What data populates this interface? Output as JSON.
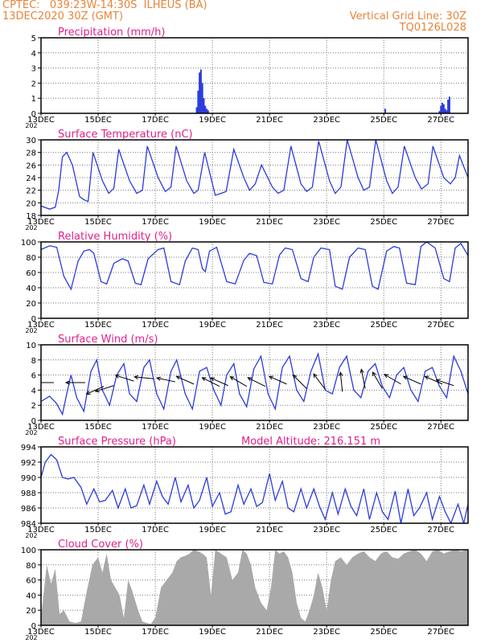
{
  "header": {
    "line1": "CPTEC:   039:23W-14:30S  ILHEUS (BA)",
    "line2": "13DEC2020 30Z (GMT)",
    "right1": "Vertical Grid Line: 30Z",
    "right2": "TQ0126L028"
  },
  "colors": {
    "title": "#e8843a",
    "panel_label": "#e0208a",
    "line": "#2b3bdc",
    "cloud": "#a9a9a9",
    "grid": "#7a7a7a"
  },
  "x_ticks": [
    "13DEC",
    "15DEC",
    "17DEC",
    "19DEC",
    "21DEC",
    "23DEC",
    "25DEC",
    "27DEC"
  ],
  "x_tick_days": [
    0,
    2,
    4,
    6,
    8,
    10,
    12,
    14
  ],
  "x_corner_fragment": "202",
  "chart_data": [
    {
      "type": "bar",
      "title": "Precipitation (mm/h)",
      "ylim": [
        0,
        5
      ],
      "yticks": [
        "0",
        "1",
        "2",
        "3",
        "4",
        "5"
      ],
      "x_unit": "days since 13DEC 06Z",
      "x": [
        2.2,
        5.45,
        5.5,
        5.55,
        5.6,
        5.65,
        5.7,
        5.75,
        5.8,
        5.85,
        12.05,
        13.95,
        14.0,
        14.05,
        14.1,
        14.15,
        14.2,
        14.25,
        14.3
      ],
      "values": [
        0.05,
        0.4,
        1.5,
        2.7,
        2.9,
        2.0,
        1.0,
        0.5,
        0.3,
        0.2,
        0.3,
        0.15,
        0.5,
        0.7,
        0.6,
        0.3,
        0.2,
        0.9,
        1.1
      ]
    },
    {
      "type": "line",
      "title": "Surface Temperature (nC)",
      "ylim": [
        18,
        30
      ],
      "yticks": [
        "18",
        "20",
        "22",
        "24",
        "26",
        "28",
        "30"
      ],
      "x": [
        0,
        0.3,
        0.5,
        0.62,
        0.75,
        0.9,
        1.1,
        1.35,
        1.5,
        1.65,
        1.82,
        2.15,
        2.37,
        2.55,
        2.72,
        3.1,
        3.35,
        3.55,
        3.72,
        4.1,
        4.35,
        4.55,
        4.73,
        5.1,
        5.35,
        5.5,
        5.73,
        6.1,
        6.3,
        6.48,
        6.75,
        7.1,
        7.3,
        7.5,
        7.72,
        8.1,
        8.3,
        8.5,
        8.75,
        9.1,
        9.3,
        9.5,
        9.72,
        10.1,
        10.3,
        10.5,
        10.72,
        11.1,
        11.3,
        11.5,
        11.72,
        12.1,
        12.3,
        12.5,
        12.72,
        13.1,
        13.32,
        13.55,
        13.72,
        14.1,
        14.33,
        14.5,
        14.65,
        14.95
      ],
      "values": [
        19.5,
        19.0,
        19.3,
        22.0,
        27.3,
        28.0,
        26.0,
        21.0,
        20.5,
        20.2,
        28.0,
        23.5,
        21.5,
        22.3,
        28.5,
        23.5,
        21.5,
        22.0,
        29.0,
        24.0,
        21.8,
        22.5,
        29.0,
        23.5,
        21.5,
        22.0,
        28.0,
        21.2,
        21.5,
        21.8,
        28.5,
        24.0,
        22.0,
        23.0,
        26.0,
        22.5,
        21.5,
        22.0,
        29.0,
        23.0,
        21.8,
        22.5,
        29.8,
        23.5,
        21.5,
        22.5,
        30.0,
        24.0,
        22.0,
        22.5,
        30.0,
        23.5,
        21.5,
        22.5,
        29.0,
        24.0,
        22.2,
        23.0,
        29.0,
        24.0,
        23.0,
        24.0,
        27.5,
        24.0
      ]
    },
    {
      "type": "line",
      "title": "Relative Humidity (%)",
      "ylim": [
        0,
        100
      ],
      "yticks": [
        "0",
        "20",
        "40",
        "60",
        "80",
        "100"
      ],
      "x": [
        0,
        0.3,
        0.55,
        0.8,
        1.05,
        1.3,
        1.5,
        1.7,
        1.85,
        2.1,
        2.3,
        2.55,
        2.85,
        3.05,
        3.3,
        3.5,
        3.75,
        4.1,
        4.3,
        4.55,
        4.85,
        5.05,
        5.3,
        5.5,
        5.65,
        5.75,
        5.9,
        6.15,
        6.5,
        6.8,
        7.1,
        7.3,
        7.55,
        7.8,
        8.1,
        8.35,
        8.55,
        8.8,
        9.1,
        9.35,
        9.55,
        9.8,
        10.1,
        10.3,
        10.55,
        10.8,
        11.1,
        11.35,
        11.6,
        11.8,
        12.1,
        12.35,
        12.55,
        12.8,
        13.1,
        13.3,
        13.5,
        13.8,
        14.1,
        14.3,
        14.5,
        14.7,
        14.95
      ],
      "values": [
        90,
        95,
        93,
        55,
        38,
        75,
        88,
        90,
        85,
        48,
        45,
        72,
        78,
        75,
        46,
        44,
        78,
        90,
        92,
        48,
        44,
        75,
        92,
        90,
        65,
        61,
        88,
        93,
        48,
        45,
        76,
        85,
        82,
        47,
        45,
        83,
        92,
        90,
        52,
        48,
        80,
        92,
        90,
        42,
        38,
        80,
        92,
        90,
        42,
        38,
        88,
        94,
        92,
        46,
        44,
        94,
        100,
        92,
        52,
        48,
        92,
        98,
        82
      ]
    },
    {
      "type": "line",
      "title": "Surface Wind (m/s)",
      "ylim": [
        0,
        10
      ],
      "yticks": [
        "0",
        "2",
        "4",
        "6",
        "8",
        "10"
      ],
      "x": [
        0,
        0.3,
        0.55,
        0.75,
        0.9,
        1.05,
        1.25,
        1.5,
        1.75,
        1.95,
        2.15,
        2.4,
        2.65,
        2.9,
        3.1,
        3.35,
        3.6,
        3.8,
        4.05,
        4.3,
        4.55,
        4.75,
        5.05,
        5.3,
        5.55,
        5.8,
        6.05,
        6.3,
        6.5,
        6.75,
        6.95,
        7.2,
        7.45,
        7.7,
        7.95,
        8.2,
        8.45,
        8.7,
        8.95,
        9.2,
        9.45,
        9.7,
        9.95,
        10.2,
        10.45,
        10.7,
        10.95,
        11.2,
        11.45,
        11.7,
        11.95,
        12.2,
        12.45,
        12.7,
        12.95,
        13.2,
        13.45,
        13.7,
        13.95,
        14.2,
        14.45,
        14.7,
        14.95
      ],
      "values": [
        2.5,
        3.2,
        2.2,
        0.8,
        3.5,
        6.0,
        3.0,
        1.2,
        6.5,
        8.0,
        4.0,
        2.0,
        6.0,
        7.5,
        3.5,
        2.5,
        7.0,
        8.0,
        3.5,
        1.5,
        6.5,
        8.0,
        3.5,
        1.5,
        6.5,
        7.0,
        4.0,
        2.0,
        6.0,
        7.5,
        3.5,
        1.8,
        6.8,
        8.5,
        3.5,
        1.5,
        7.0,
        8.5,
        4.0,
        2.5,
        6.5,
        8.8,
        4.0,
        3.5,
        7.0,
        8.5,
        4.0,
        3.0,
        6.5,
        7.5,
        4.5,
        3.0,
        6.0,
        7.0,
        4.0,
        2.5,
        6.5,
        7.0,
        4.5,
        3.0,
        8.5,
        6.5,
        3.5
      ],
      "barbs": [
        {
          "x": 0.1,
          "y": 5.0,
          "u": -1,
          "v": 0.0
        },
        {
          "x": 0.45,
          "y": 5.0,
          "u": -1,
          "v": 0.0
        },
        {
          "x": 1.55,
          "y": 5.0,
          "u": -1,
          "v": 0.0
        },
        {
          "x": 2.2,
          "y": 4.5,
          "u": -0.9,
          "v": -0.4
        },
        {
          "x": 2.55,
          "y": 4.6,
          "u": -0.95,
          "v": -0.3
        },
        {
          "x": 3.25,
          "y": 5.2,
          "u": -0.95,
          "v": 0.3
        },
        {
          "x": 3.95,
          "y": 5.5,
          "u": -1,
          "v": 0.1
        },
        {
          "x": 4.7,
          "y": 5.1,
          "u": -0.95,
          "v": 0.2
        },
        {
          "x": 5.35,
          "y": 4.8,
          "u": -0.9,
          "v": 0.4
        },
        {
          "x": 6.25,
          "y": 4.5,
          "u": -0.9,
          "v": 0.45
        },
        {
          "x": 6.55,
          "y": 4.6,
          "u": -0.9,
          "v": 0.4
        },
        {
          "x": 7.2,
          "y": 4.5,
          "u": -0.85,
          "v": 0.5
        },
        {
          "x": 7.85,
          "y": 4.5,
          "u": -0.9,
          "v": 0.45
        },
        {
          "x": 8.6,
          "y": 4.8,
          "u": -0.9,
          "v": 0.4
        },
        {
          "x": 9.3,
          "y": 4.2,
          "u": -0.7,
          "v": 0.7
        },
        {
          "x": 9.95,
          "y": 4.1,
          "u": -0.6,
          "v": 0.8
        },
        {
          "x": 10.55,
          "y": 3.8,
          "u": -0.1,
          "v": 1.0
        },
        {
          "x": 11.35,
          "y": 4.2,
          "u": -0.2,
          "v": 1.0
        },
        {
          "x": 11.95,
          "y": 4.2,
          "u": -0.5,
          "v": 0.85
        },
        {
          "x": 12.6,
          "y": 4.8,
          "u": -0.85,
          "v": 0.5
        },
        {
          "x": 13.3,
          "y": 4.8,
          "u": -0.9,
          "v": 0.4
        },
        {
          "x": 14.05,
          "y": 4.8,
          "u": -0.9,
          "v": 0.4
        },
        {
          "x": 14.45,
          "y": 4.6,
          "u": -0.9,
          "v": 0.3
        }
      ]
    },
    {
      "type": "line",
      "title": "Surface Pressure (hPa)",
      "annotation": "Model Altitude: 216.151  m",
      "ylim": [
        984,
        994
      ],
      "yticks": [
        "984",
        "986",
        "988",
        "990",
        "992",
        "994"
      ],
      "x": [
        0,
        0.15,
        0.35,
        0.55,
        0.75,
        0.95,
        1.15,
        1.4,
        1.6,
        1.85,
        2.05,
        2.25,
        2.5,
        2.7,
        2.95,
        3.15,
        3.35,
        3.6,
        3.8,
        4.05,
        4.25,
        4.45,
        4.7,
        4.9,
        5.15,
        5.35,
        5.55,
        5.8,
        6.0,
        6.25,
        6.45,
        6.65,
        6.9,
        7.1,
        7.35,
        7.55,
        7.75,
        8.0,
        8.2,
        8.45,
        8.65,
        8.85,
        9.1,
        9.3,
        9.55,
        9.75,
        9.95,
        10.2,
        10.4,
        10.65,
        10.85,
        11.05,
        11.3,
        11.5,
        11.75,
        11.95,
        12.15,
        12.4,
        12.6,
        12.85,
        13.05,
        13.25,
        13.5,
        13.7,
        13.95,
        14.15,
        14.35,
        14.6,
        14.8,
        14.95
      ],
      "values": [
        990.0,
        992.0,
        993.0,
        992.3,
        990.0,
        989.8,
        990.0,
        988.7,
        986.5,
        988.5,
        986.8,
        987.0,
        988.3,
        986.0,
        988.5,
        986.0,
        986.3,
        989.0,
        986.5,
        989.5,
        987.5,
        986.5,
        990.0,
        986.8,
        989.0,
        986.0,
        987.0,
        990.0,
        986.2,
        988.0,
        985.2,
        985.5,
        989.0,
        986.5,
        988.5,
        986.2,
        986.7,
        990.5,
        987.0,
        989.5,
        986.0,
        985.5,
        988.5,
        986.0,
        988.5,
        986.2,
        984.5,
        988.0,
        985.2,
        988.5,
        986.2,
        985.0,
        988.5,
        984.5,
        988.0,
        985.5,
        984.5,
        988.2,
        984.0,
        988.5,
        985.0,
        986.0,
        988.0,
        984.5,
        987.5,
        985.5,
        984.0,
        986.5,
        984.0,
        986.5
      ]
    },
    {
      "type": "area",
      "title": "Cloud Cover (%)",
      "ylim": [
        0,
        100
      ],
      "yticks": [
        "0",
        "20",
        "40",
        "60",
        "80",
        "100"
      ],
      "x": [
        0,
        0.2,
        0.35,
        0.5,
        0.65,
        0.8,
        1.0,
        1.2,
        1.4,
        1.6,
        1.8,
        2.0,
        2.15,
        2.3,
        2.45,
        2.6,
        2.75,
        2.9,
        3.05,
        3.2,
        3.4,
        3.55,
        3.7,
        3.85,
        4.0,
        4.2,
        4.4,
        4.6,
        4.75,
        4.9,
        5.05,
        5.2,
        5.35,
        5.5,
        5.65,
        5.8,
        5.95,
        6.1,
        6.3,
        6.5,
        6.7,
        6.9,
        7.05,
        7.2,
        7.35,
        7.5,
        7.7,
        7.9,
        8.05,
        8.2,
        8.35,
        8.5,
        8.65,
        8.8,
        8.95,
        9.1,
        9.25,
        9.4,
        9.55,
        9.7,
        9.85,
        10.0,
        10.15,
        10.3,
        10.5,
        10.7,
        10.9,
        11.1,
        11.3,
        11.5,
        11.7,
        11.9,
        12.1,
        12.3,
        12.5,
        12.7,
        12.9,
        13.1,
        13.3,
        13.5,
        13.7,
        13.9,
        14.1,
        14.3,
        14.5,
        14.7,
        14.95
      ],
      "values": [
        10,
        80,
        55,
        75,
        15,
        20,
        5,
        3,
        5,
        45,
        80,
        90,
        70,
        95,
        60,
        50,
        40,
        10,
        60,
        45,
        20,
        5,
        3,
        2,
        10,
        50,
        60,
        70,
        85,
        90,
        92,
        95,
        100,
        98,
        95,
        90,
        40,
        100,
        95,
        90,
        60,
        70,
        100,
        95,
        80,
        50,
        30,
        20,
        50,
        100,
        95,
        98,
        90,
        70,
        30,
        10,
        5,
        20,
        40,
        70,
        50,
        20,
        60,
        85,
        90,
        80,
        90,
        95,
        98,
        90,
        85,
        95,
        98,
        90,
        88,
        95,
        98,
        100,
        95,
        85,
        98,
        100,
        95,
        98,
        100,
        98,
        100
      ]
    }
  ]
}
